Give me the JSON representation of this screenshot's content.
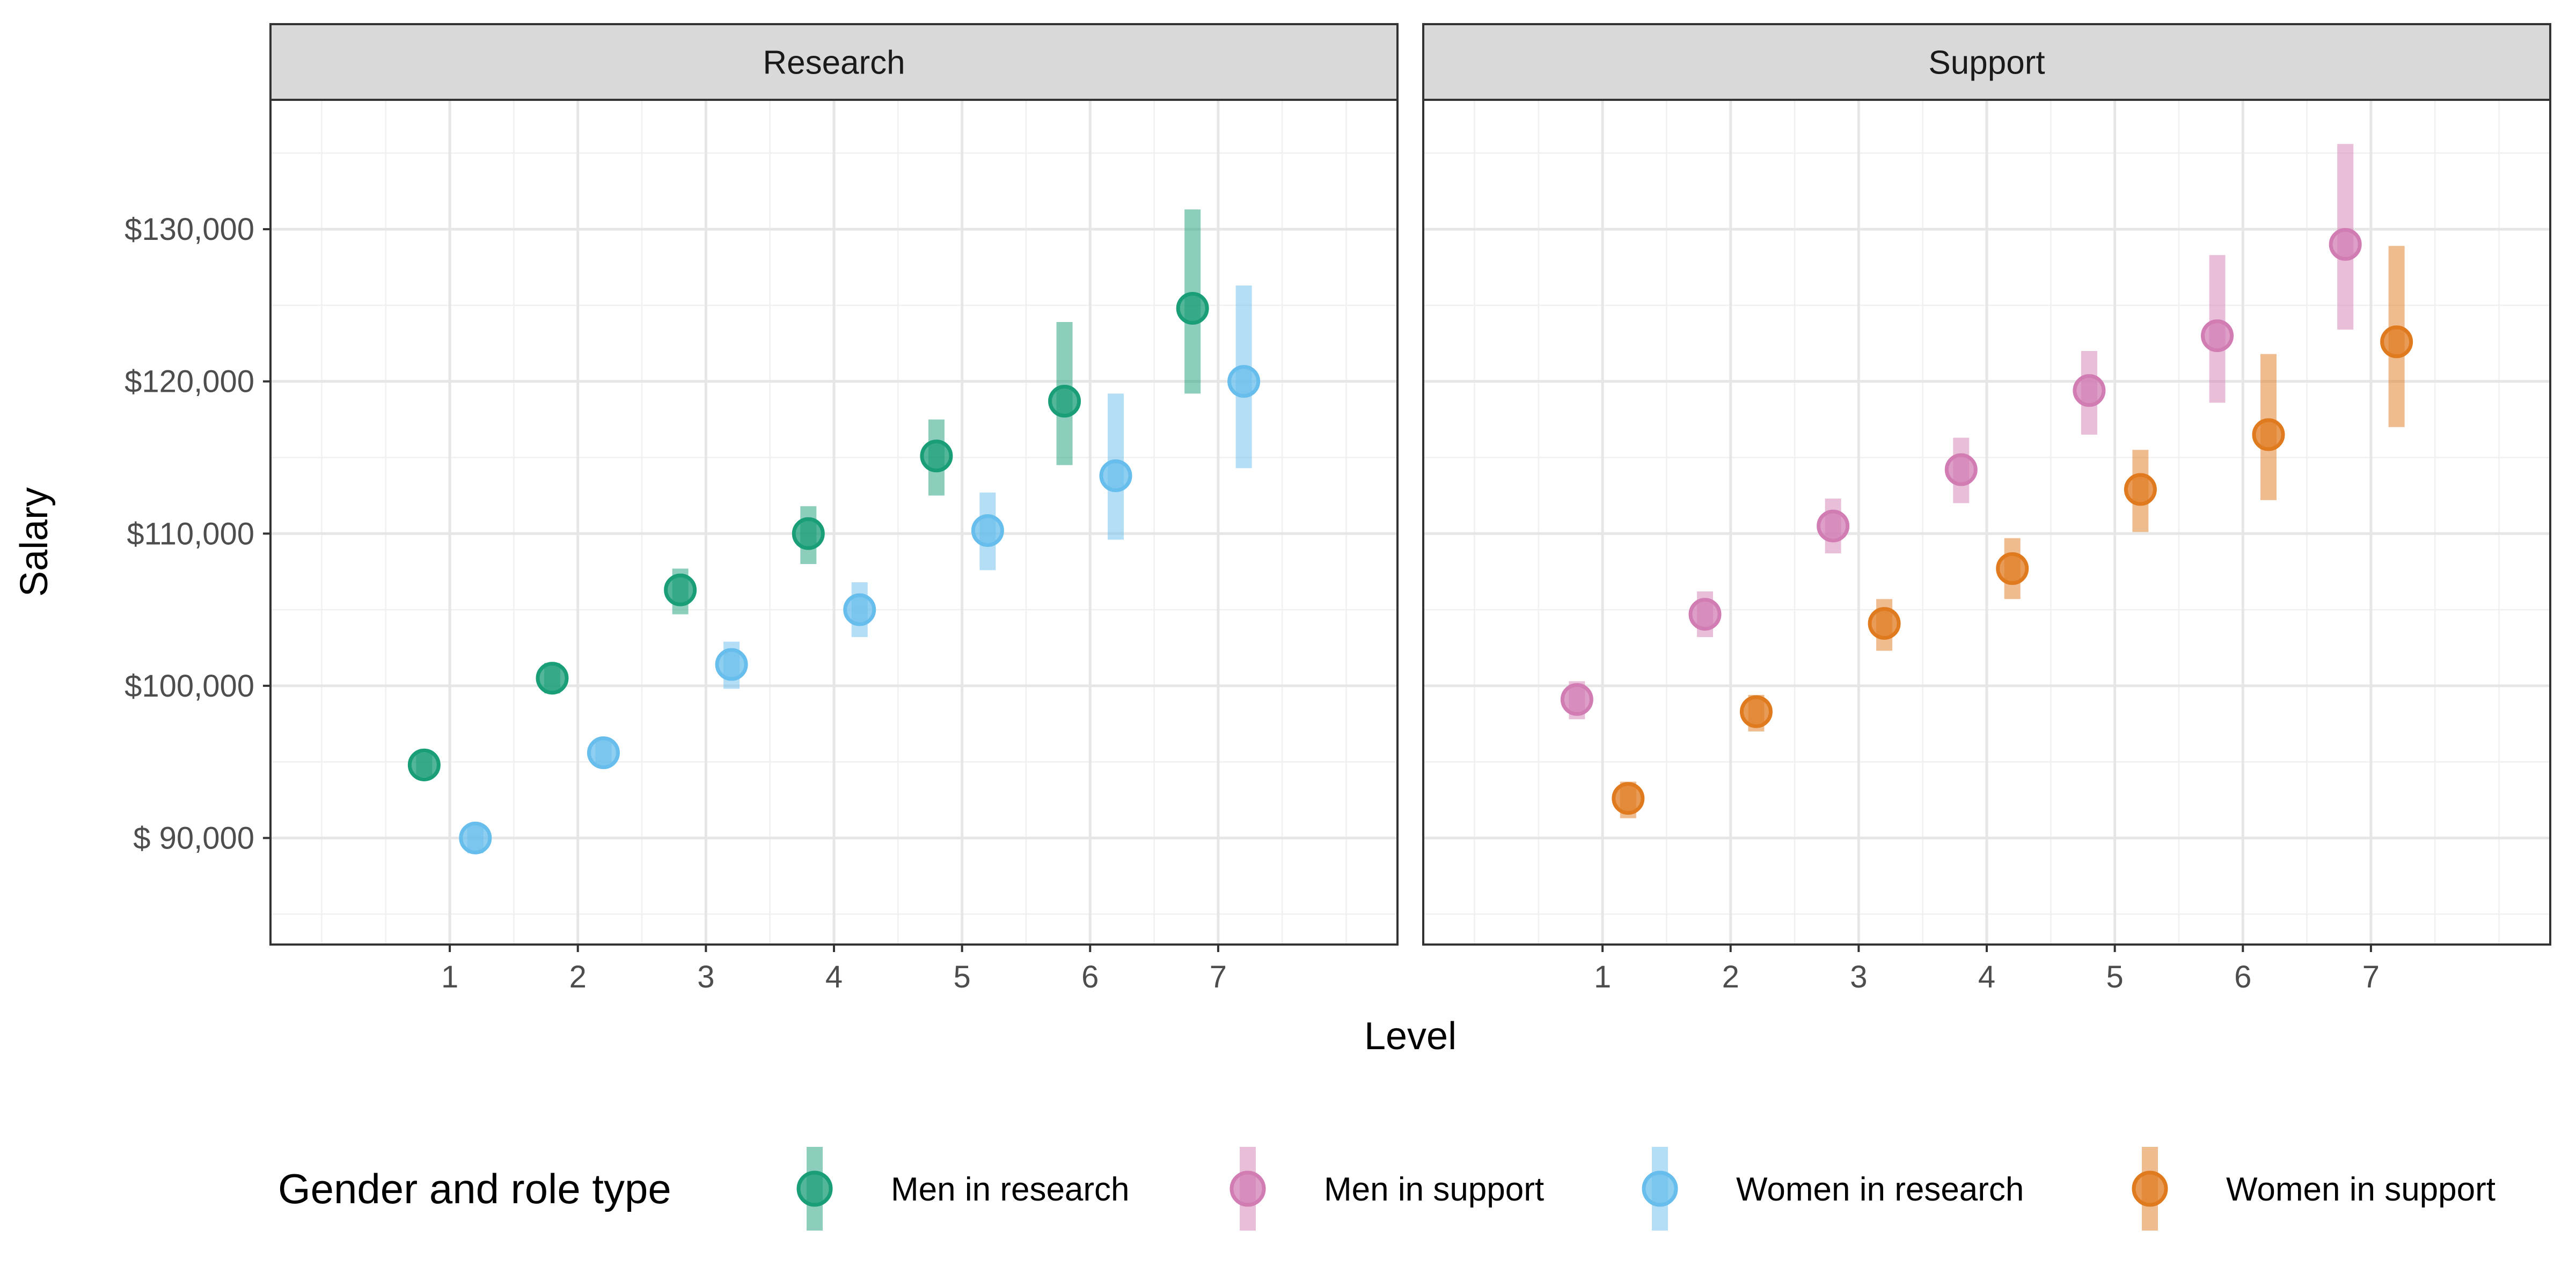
{
  "chart_data": {
    "type": "scatter",
    "title": "",
    "xlabel": "Level",
    "ylabel": "Salary",
    "xlim": [
      -0.4,
      8.4
    ],
    "ylim": [
      83000,
      138500
    ],
    "x_ticks": [
      1,
      2,
      3,
      4,
      5,
      6,
      7
    ],
    "x_tick_labels": [
      "1",
      "2",
      "3",
      "4",
      "5",
      "6",
      "7"
    ],
    "y_ticks": [
      90000,
      100000,
      110000,
      120000,
      130000
    ],
    "y_tick_labels": [
      "$ 90,000",
      "$100,000",
      "$110,000",
      "$120,000",
      "$130,000"
    ],
    "grid": true,
    "legend": {
      "title": "Gender and role type",
      "position": "bottom",
      "entries": [
        "Men in research",
        "Men in support",
        "Women in research",
        "Women in support"
      ]
    },
    "colors": {
      "Men in research": "#1a9e77",
      "Men in support": "#d17db4",
      "Women in research": "#67bdec",
      "Women in support": "#e07a1f"
    },
    "facets": [
      {
        "title": "Research",
        "series": [
          {
            "name": "Men in research",
            "x": [
              0.8,
              1.8,
              2.8,
              3.8,
              4.8,
              5.8,
              6.8
            ],
            "y": [
              94800,
              100500,
              106300,
              110000,
              115100,
              118700,
              124800
            ],
            "ymin": [
              94000,
              99500,
              104700,
              108000,
              112500,
              114500,
              119200
            ],
            "ymax": [
              95600,
              101500,
              107700,
              111800,
              117500,
              123900,
              131300
            ]
          },
          {
            "name": "Women in research",
            "x": [
              1.2,
              2.2,
              3.2,
              4.2,
              5.2,
              6.2,
              7.2
            ],
            "y": [
              90000,
              95600,
              101400,
              105000,
              110200,
              113800,
              120000
            ],
            "ymin": [
              89000,
              94700,
              99800,
              103200,
              107600,
              109600,
              114300
            ],
            "ymax": [
              90900,
              96500,
              102900,
              106800,
              112700,
              119200,
              126300
            ]
          }
        ]
      },
      {
        "title": "Support",
        "series": [
          {
            "name": "Men in support",
            "x": [
              0.8,
              1.8,
              2.8,
              3.8,
              4.8,
              5.8,
              6.8
            ],
            "y": [
              99100,
              104700,
              110500,
              114200,
              119400,
              123000,
              129000
            ],
            "ymin": [
              97800,
              103200,
              108700,
              112000,
              116500,
              118600,
              123400
            ],
            "ymax": [
              100300,
              106200,
              112300,
              116300,
              122000,
              128300,
              135600
            ]
          },
          {
            "name": "Women in support",
            "x": [
              1.2,
              2.2,
              3.2,
              4.2,
              5.2,
              6.2,
              7.2
            ],
            "y": [
              92600,
              98300,
              104100,
              107700,
              112900,
              116500,
              122600
            ],
            "ymin": [
              91300,
              97000,
              102300,
              105700,
              110100,
              112200,
              117000
            ],
            "ymax": [
              93700,
              99400,
              105700,
              109700,
              115500,
              121800,
              128900
            ]
          }
        ]
      }
    ]
  }
}
